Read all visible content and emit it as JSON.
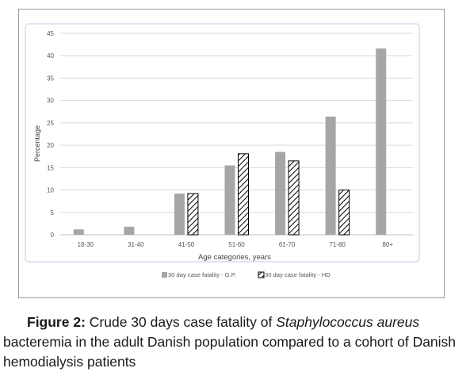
{
  "chart_data": {
    "type": "bar",
    "title": "",
    "xlabel": "Age categories, years",
    "ylabel": "Percentage",
    "ylim": [
      0,
      45
    ],
    "yticks": [
      0,
      5,
      10,
      15,
      20,
      25,
      30,
      35,
      40,
      45
    ],
    "grid": true,
    "legend_position": "bottom",
    "categories": [
      "18-30",
      "31-40",
      "41-50",
      "51-60",
      "61-70",
      "71-80",
      "80+"
    ],
    "series": [
      {
        "name": "30 day case fatality - G.P.",
        "values": [
          1.2,
          1.8,
          9.2,
          15.5,
          18.5,
          26.4,
          41.6
        ],
        "color": "#a6a6a6",
        "pattern": "solid"
      },
      {
        "name": "30 day case fatality - HD",
        "values": [
          null,
          null,
          9.2,
          18.1,
          16.5,
          10.0,
          null
        ],
        "color": "#000000",
        "pattern": "diagonal-hatch"
      }
    ]
  },
  "caption": {
    "label": "Figure 2:",
    "text_before": "Crude 30 days case fatality of",
    "italic": "Staphylococcus aureus",
    "text_after": "bacteremia in the adult Danish population compared to a cohort of Danish hemodialysis patients"
  }
}
